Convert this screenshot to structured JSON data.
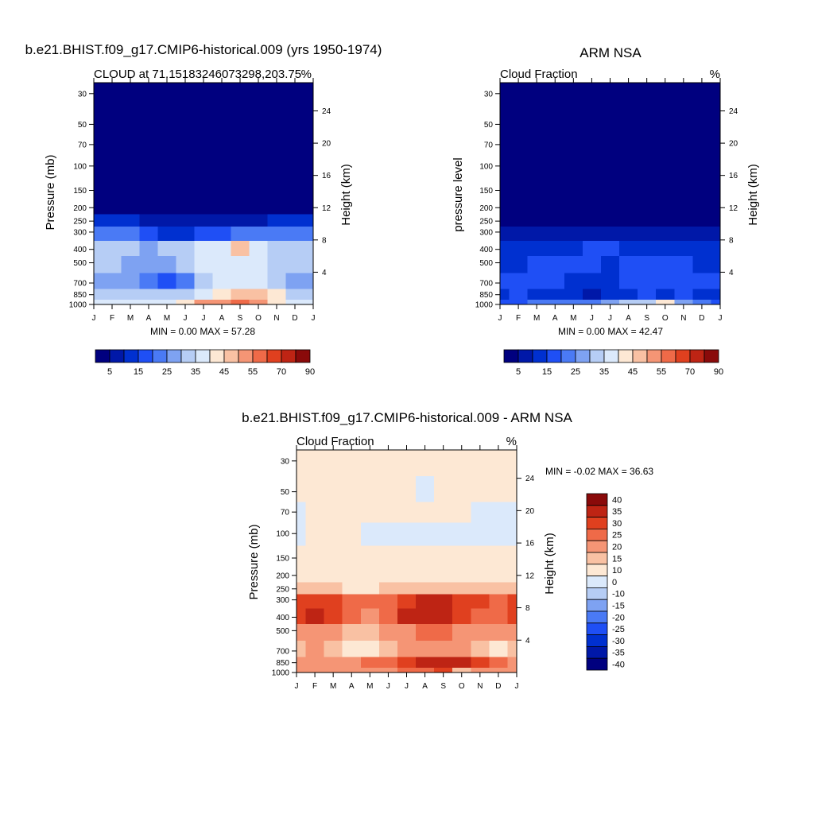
{
  "months": [
    "J",
    "F",
    "M",
    "A",
    "M",
    "J",
    "J",
    "A",
    "S",
    "O",
    "N",
    "D",
    "J"
  ],
  "pressure_ticks": [
    "30",
    "50",
    "70",
    "100",
    "150",
    "200",
    "250",
    "300",
    "400",
    "500",
    "700",
    "850",
    "1000"
  ],
  "pressure_values": [
    30,
    50,
    70,
    100,
    150,
    200,
    250,
    300,
    400,
    500,
    700,
    850,
    1000
  ],
  "height_ticks": [
    "24",
    "20",
    "16",
    "12",
    "8",
    "4"
  ],
  "height_values": [
    24,
    20,
    16,
    12,
    8,
    4
  ],
  "palette_abs": [
    "#00007f",
    "#0018a8",
    "#0030d0",
    "#1f4ff5",
    "#4a7af5",
    "#7ea2f2",
    "#b6cdf5",
    "#dbe9fb",
    "#fde8d4",
    "#f9c1a3",
    "#f59575",
    "#ef6a48",
    "#e0401f",
    "#be2414",
    "#8a0a0a"
  ],
  "palette_diff": [
    "#00007f",
    "#0018a8",
    "#0030d0",
    "#1f4ff5",
    "#4a7af5",
    "#7ea2f2",
    "#b6cdf5",
    "#dbe9fb",
    "#fde8d4",
    "#f9c1a3",
    "#f59575",
    "#ef6a48",
    "#e0401f",
    "#be2414",
    "#8a0a0a"
  ],
  "colorbar_abs_labels": [
    "5",
    "15",
    "25",
    "35",
    "45",
    "55",
    "70",
    "90"
  ],
  "colorbar_diff_labels": [
    "40",
    "35",
    "30",
    "25",
    "20",
    "15",
    "10",
    "0",
    "-10",
    "-15",
    "-20",
    "-25",
    "-30",
    "-35",
    "-40"
  ],
  "chart_data": [
    {
      "type": "heatmap",
      "title": "b.e21.BHIST.f09_g17.CMIP6-historical.009 (yrs 1950-1974)",
      "left_label": "CLOUD at 71.15183246073298,203.75",
      "right_label": "%",
      "xlabel": "",
      "ylabel": "Pressure (mb)",
      "y2label": "Height (km)",
      "min_max_text": "MIN =   0.00 MAX =  57.28",
      "min": 0.0,
      "max": 57.28,
      "levels": [
        5,
        10,
        15,
        20,
        25,
        30,
        35,
        40,
        45,
        50,
        55,
        60,
        70,
        80,
        90
      ],
      "x": [
        "J",
        "F",
        "M",
        "A",
        "M",
        "J",
        "J",
        "A",
        "S",
        "O",
        "N",
        "D",
        "J"
      ],
      "y_pressure": [
        30,
        50,
        70,
        100,
        150,
        200,
        250,
        300,
        400,
        500,
        700,
        850,
        1000
      ],
      "z": [
        [
          0,
          0,
          0,
          0,
          0,
          0,
          0,
          0,
          0,
          0,
          0,
          0,
          0
        ],
        [
          0,
          0,
          0,
          0,
          0,
          0,
          0,
          0,
          0,
          0,
          0,
          0,
          0
        ],
        [
          0,
          0,
          0,
          0,
          0,
          0,
          0,
          0,
          0,
          0,
          0,
          0,
          0
        ],
        [
          0,
          0,
          0,
          0,
          0,
          0,
          0,
          0,
          0,
          0,
          0,
          0,
          0
        ],
        [
          1,
          1,
          1,
          0,
          0,
          0,
          0,
          0,
          0,
          0,
          0,
          1,
          1
        ],
        [
          3,
          3,
          2,
          2,
          1,
          1,
          1,
          1,
          1,
          2,
          3,
          3,
          3
        ],
        [
          10,
          11,
          10,
          8,
          5,
          5,
          6,
          6,
          7,
          9,
          11,
          11,
          10
        ],
        [
          22,
          23,
          21,
          17,
          13,
          14,
          17,
          19,
          20,
          20,
          23,
          23,
          22
        ],
        [
          33,
          32,
          31,
          28,
          30,
          34,
          37,
          39,
          45,
          38,
          33,
          33,
          33
        ],
        [
          32,
          31,
          29,
          28,
          26,
          30,
          36,
          38,
          38,
          37,
          31,
          31,
          32
        ],
        [
          29,
          26,
          27,
          23,
          17,
          24,
          33,
          38,
          37,
          38,
          30,
          26,
          29
        ],
        [
          32,
          30,
          31,
          30,
          31,
          32,
          38,
          44,
          49,
          48,
          42,
          34,
          32
        ],
        [
          36,
          36,
          37,
          36,
          39,
          42,
          50,
          54,
          57,
          54,
          44,
          38,
          36
        ]
      ]
    },
    {
      "type": "heatmap",
      "title": "ARM NSA",
      "left_label": "Cloud Fraction",
      "right_label": "%",
      "xlabel": "",
      "ylabel": "pressure level",
      "y2label": "Height (km)",
      "min_max_text": "MIN =   0.00 MAX =  42.47",
      "min": 0.0,
      "max": 42.47,
      "levels": [
        5,
        10,
        15,
        20,
        25,
        30,
        35,
        40,
        45,
        50,
        55,
        60,
        70,
        80,
        90
      ],
      "x": [
        "J",
        "F",
        "M",
        "A",
        "M",
        "J",
        "J",
        "A",
        "S",
        "O",
        "N",
        "D",
        "J"
      ],
      "y_pressure": [
        30,
        50,
        70,
        100,
        150,
        200,
        250,
        300,
        400,
        500,
        700,
        850,
        1000
      ],
      "z": [
        [
          0,
          0,
          0,
          0,
          0,
          0,
          0,
          0,
          0,
          0,
          0,
          0,
          0
        ],
        [
          0,
          0,
          0,
          0,
          0,
          0,
          0,
          0,
          0,
          0,
          0,
          0,
          0
        ],
        [
          0,
          0,
          0,
          0,
          0,
          0,
          0,
          0,
          0,
          0,
          0,
          0,
          0
        ],
        [
          0,
          0,
          0,
          0,
          0,
          0,
          0,
          0,
          0,
          0,
          0,
          0,
          0
        ],
        [
          0,
          0,
          0,
          0,
          0,
          0,
          0,
          0,
          0,
          0,
          0,
          0,
          0
        ],
        [
          1,
          1,
          1,
          1,
          1,
          1,
          1,
          1,
          1,
          1,
          1,
          1,
          1
        ],
        [
          3,
          3,
          3,
          3,
          3,
          3,
          4,
          3,
          3,
          3,
          3,
          3,
          3
        ],
        [
          7,
          8,
          7,
          6,
          7,
          8,
          9,
          7,
          6,
          7,
          8,
          7,
          7
        ],
        [
          13,
          14,
          12,
          13,
          14,
          15,
          16,
          14,
          13,
          13,
          14,
          13,
          13
        ],
        [
          14,
          14,
          15,
          17,
          16,
          15,
          13,
          18,
          18,
          17,
          16,
          14,
          14
        ],
        [
          16,
          15,
          17,
          15,
          12,
          14,
          13,
          16,
          18,
          17,
          16,
          15,
          16
        ],
        [
          14,
          15,
          14,
          12,
          10,
          9,
          11,
          14,
          16,
          13,
          15,
          14,
          14
        ],
        [
          17,
          18,
          22,
          20,
          22,
          24,
          27,
          30,
          32,
          42,
          28,
          22,
          17
        ]
      ]
    },
    {
      "type": "heatmap",
      "title": "b.e21.BHIST.f09_g17.CMIP6-historical.009 - ARM NSA",
      "left_label": "Cloud Fraction",
      "right_label": "%",
      "xlabel": "",
      "ylabel": "Pressure (mb)",
      "y2label": "Height (km)",
      "min_max_text": "MIN =  -0.02 MAX =  36.63",
      "min": -0.02,
      "max": 36.63,
      "levels": [
        -40,
        -35,
        -30,
        -25,
        -20,
        -15,
        -10,
        0,
        10,
        15,
        20,
        25,
        30,
        35,
        40
      ],
      "x": [
        "J",
        "F",
        "M",
        "A",
        "M",
        "J",
        "J",
        "A",
        "S",
        "O",
        "N",
        "D",
        "J"
      ],
      "y_pressure": [
        30,
        50,
        70,
        100,
        150,
        200,
        250,
        300,
        400,
        500,
        700,
        850,
        1000
      ],
      "z": [
        [
          0.5,
          0.5,
          0.5,
          0.5,
          0.5,
          0.5,
          0.5,
          0.5,
          0.5,
          0.5,
          0.5,
          0.5,
          0.5
        ],
        [
          0.5,
          0.5,
          0.5,
          0.5,
          0.5,
          0.5,
          0.5,
          -0.01,
          0.5,
          0.5,
          0.5,
          0.5,
          0.5
        ],
        [
          -0.01,
          0.5,
          0.5,
          0.5,
          0.5,
          0.5,
          0.5,
          0.5,
          0.5,
          0.5,
          -0.01,
          -0.01,
          -0.01
        ],
        [
          -0.01,
          0.5,
          0.5,
          0.5,
          -0.01,
          -0.01,
          -0.01,
          -0.01,
          -0.01,
          -0.01,
          -0.01,
          -0.01,
          -0.01
        ],
        [
          0.5,
          0.5,
          0.5,
          0.5,
          0.5,
          0.5,
          0.5,
          0.5,
          0.5,
          0.5,
          0.5,
          0.5,
          0.5
        ],
        [
          1,
          1,
          1,
          1,
          1,
          1,
          1,
          1,
          1,
          1,
          1,
          1,
          1
        ],
        [
          11,
          11,
          10,
          9,
          9,
          10,
          11,
          12,
          12,
          11,
          11,
          11,
          11
        ],
        [
          26,
          27,
          25,
          21,
          20,
          23,
          29,
          31,
          34,
          28,
          25,
          24,
          26
        ],
        [
          27,
          31,
          25,
          20,
          18,
          24,
          30,
          30,
          32,
          28,
          22,
          21,
          27
        ],
        [
          18,
          17,
          16,
          14,
          12,
          15,
          18,
          20,
          20,
          19,
          17,
          17,
          18
        ],
        [
          10,
          15,
          11,
          9,
          7,
          10,
          15,
          17,
          17,
          16,
          14,
          9,
          10
        ],
        [
          18,
          16,
          18,
          18,
          21,
          23,
          27,
          30,
          33,
          33,
          27,
          20,
          18
        ],
        [
          19,
          18,
          15,
          16,
          17,
          18,
          23,
          24,
          25,
          12,
          16,
          16,
          19
        ]
      ]
    }
  ]
}
